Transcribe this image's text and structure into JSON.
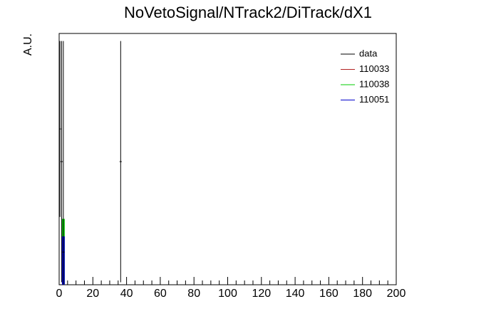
{
  "chart_data": {
    "type": "histogram",
    "title": "NoVetoSignal/NTrack2/DiTrack/dX1",
    "ylabel": "A.U.",
    "xlim": [
      0,
      200
    ],
    "ylim": [
      0,
      1
    ],
    "xticks": [
      0,
      20,
      40,
      60,
      80,
      100,
      120,
      140,
      160,
      180,
      200
    ],
    "xminorticks": [
      5,
      10,
      15,
      25,
      30,
      35,
      45,
      50,
      55,
      65,
      70,
      75,
      85,
      90,
      95,
      105,
      110,
      115,
      125,
      130,
      135,
      145,
      150,
      155,
      165,
      170,
      175,
      185,
      190,
      195
    ],
    "legend": "top-right",
    "data": {
      "name": "data",
      "color": "#000000",
      "x": [
        0.5,
        1.5,
        2.5,
        36.5
      ],
      "values": [
        0.62,
        0.49,
        0.13,
        0.49
      ],
      "errors": [
        0.35,
        0.48,
        0.84,
        0.48
      ]
    },
    "series": [
      {
        "name": "110033",
        "color": "#b22222",
        "bins": [
          2,
          3
        ],
        "values": [
          0.19
        ]
      },
      {
        "name": "110038",
        "color": "#00cc00",
        "bins": [
          2,
          3
        ],
        "values": [
          0.26
        ]
      },
      {
        "name": "110051",
        "color": "#0000cc",
        "bins": [
          2,
          3
        ],
        "values": [
          0.19
        ]
      }
    ]
  }
}
